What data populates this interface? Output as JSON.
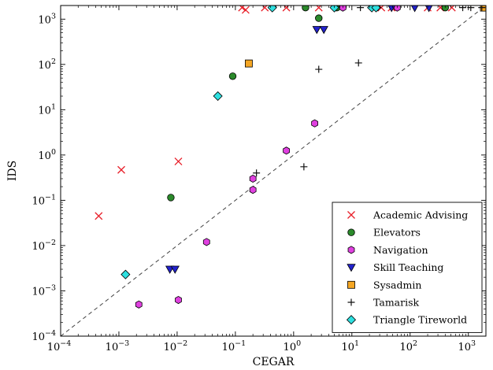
{
  "chart_data": {
    "type": "scatter",
    "xlabel": "CEGAR",
    "ylabel": "IDS",
    "x_scale": "log",
    "y_scale": "log",
    "xlim": [
      0.0001,
      2000
    ],
    "ylim": [
      0.0001,
      2000
    ],
    "x_ticks": [
      {
        "value": 0.0001,
        "base": "10",
        "exp": "−4"
      },
      {
        "value": 0.001,
        "base": "10",
        "exp": "−3"
      },
      {
        "value": 0.01,
        "base": "10",
        "exp": "−2"
      },
      {
        "value": 0.1,
        "base": "10",
        "exp": "−1"
      },
      {
        "value": 1,
        "base": "10",
        "exp": "0"
      },
      {
        "value": 10,
        "base": "10",
        "exp": "1"
      },
      {
        "value": 100,
        "base": "10",
        "exp": "2"
      },
      {
        "value": 1000,
        "base": "10",
        "exp": "3"
      }
    ],
    "y_ticks": [
      {
        "value": 0.0001,
        "base": "10",
        "exp": "−4"
      },
      {
        "value": 0.001,
        "base": "10",
        "exp": "−3"
      },
      {
        "value": 0.01,
        "base": "10",
        "exp": "−2"
      },
      {
        "value": 0.1,
        "base": "10",
        "exp": "−1"
      },
      {
        "value": 1,
        "base": "10",
        "exp": "0"
      },
      {
        "value": 10,
        "base": "10",
        "exp": "1"
      },
      {
        "value": 100,
        "base": "10",
        "exp": "2"
      },
      {
        "value": 1000,
        "base": "10",
        "exp": "3"
      }
    ],
    "diagonal_reference": true,
    "grid": false,
    "legend_position": "lower-right",
    "series": [
      {
        "name": "Academic Advising",
        "marker": "x",
        "color": "#e8202a",
        "points": [
          [
            0.00045,
            0.045
          ],
          [
            0.0011,
            0.47
          ],
          [
            0.0105,
            0.72
          ],
          [
            0.13,
            1800
          ],
          [
            0.15,
            1600
          ],
          [
            0.32,
            1800
          ],
          [
            0.75,
            1800
          ],
          [
            2.7,
            1800
          ],
          [
            32,
            1800
          ],
          [
            48,
            1800
          ],
          [
            200,
            1800
          ],
          [
            330,
            1800
          ],
          [
            520,
            1800
          ]
        ]
      },
      {
        "name": "Elevators",
        "marker": "circle",
        "color": "#2b8a2b",
        "points": [
          [
            0.0078,
            0.115
          ],
          [
            0.09,
            55
          ],
          [
            1.6,
            1800
          ],
          [
            2.7,
            1050
          ],
          [
            5.5,
            1800
          ],
          [
            400,
            1800
          ]
        ]
      },
      {
        "name": "Navigation",
        "marker": "hexagon",
        "color": "#e040e0",
        "points": [
          [
            0.0022,
            0.0005
          ],
          [
            0.0105,
            0.00063
          ],
          [
            0.032,
            0.012
          ],
          [
            0.2,
            0.3
          ],
          [
            0.2,
            0.17
          ],
          [
            0.75,
            1.25
          ],
          [
            2.3,
            5.0
          ],
          [
            7.0,
            1800
          ],
          [
            60,
            1800
          ]
        ]
      },
      {
        "name": "Skill Teaching",
        "marker": "triangle-down",
        "color": "#2222cc",
        "points": [
          [
            0.0075,
            0.003
          ],
          [
            0.0092,
            0.003
          ],
          [
            2.5,
            590
          ],
          [
            3.3,
            590
          ],
          [
            48,
            1800
          ],
          [
            120,
            1800
          ],
          [
            210,
            1800
          ]
        ]
      },
      {
        "name": "Sysadmin",
        "marker": "square",
        "color": "#f5a623",
        "points": [
          [
            0.17,
            105
          ],
          [
            1850,
            1800
          ]
        ]
      },
      {
        "name": "Tamarisk",
        "marker": "plus",
        "color": "#111111",
        "points": [
          [
            0.23,
            0.4
          ],
          [
            1.5,
            0.55
          ],
          [
            2.7,
            78
          ],
          [
            13,
            108
          ],
          [
            14,
            1800
          ],
          [
            28,
            1800
          ],
          [
            800,
            1800
          ],
          [
            1100,
            1800
          ],
          [
            1700,
            1800
          ]
        ]
      },
      {
        "name": "Triangle Tireworld",
        "marker": "diamond",
        "color": "#2ee0e0",
        "points": [
          [
            0.0013,
            0.0023
          ],
          [
            0.05,
            20
          ],
          [
            0.43,
            1800
          ],
          [
            5.0,
            1800
          ],
          [
            22,
            1800
          ],
          [
            26,
            1800
          ]
        ]
      }
    ]
  }
}
